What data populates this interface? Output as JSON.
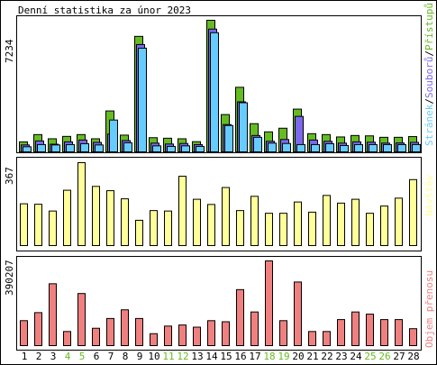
{
  "title": "Denní statistika za únor 2023",
  "colors": {
    "hits": "#66bb22",
    "files": "#7b68ee",
    "pages": "#66ccff",
    "visits": "#ffff99",
    "kbytes": "#f08080",
    "weekend": "#66bb22",
    "text": "#000000",
    "frame": "#000000"
  },
  "legends": {
    "top": [
      {
        "text": "Stránek",
        "color": "#66ccff"
      },
      {
        "text": "/",
        "color": "#000000"
      },
      {
        "text": "Souborů",
        "color": "#7b68ee"
      },
      {
        "text": "/",
        "color": "#000000"
      },
      {
        "text": "Přístupů",
        "color": "#66bb22"
      }
    ],
    "middle": "Návštěv",
    "bottom": "Objem přenosu"
  },
  "chart_data": [
    {
      "type": "bar",
      "panel": "top",
      "ymax_label": "7234",
      "ylim": [
        0,
        7234
      ],
      "categories": [
        "1",
        "2",
        "3",
        "4",
        "5",
        "6",
        "7",
        "8",
        "9",
        "10",
        "11",
        "12",
        "13",
        "14",
        "15",
        "16",
        "17",
        "18",
        "19",
        "20",
        "21",
        "22",
        "23",
        "24",
        "25",
        "26",
        "27",
        "28"
      ],
      "weekend_days": [
        "4",
        "5",
        "11",
        "12",
        "18",
        "19",
        "25",
        "26"
      ],
      "series": [
        {
          "name": "Přístupů",
          "values": [
            550,
            950,
            720,
            850,
            950,
            720,
            2250,
            920,
            6350,
            780,
            750,
            720,
            560,
            7234,
            2050,
            3550,
            1550,
            1100,
            1300,
            2350,
            1000,
            950,
            820,
            900,
            880,
            800,
            800,
            840
          ]
        },
        {
          "name": "Souborů",
          "values": [
            380,
            600,
            420,
            550,
            650,
            520,
            980,
            620,
            5900,
            480,
            430,
            460,
            400,
            6750,
            1500,
            2750,
            900,
            580,
            680,
            1950,
            650,
            580,
            480,
            550,
            530,
            480,
            490,
            520
          ]
        },
        {
          "name": "Stránek",
          "values": [
            280,
            400,
            380,
            400,
            450,
            380,
            1750,
            500,
            5700,
            330,
            300,
            330,
            300,
            6550,
            1450,
            2700,
            800,
            480,
            460,
            400,
            400,
            450,
            350,
            400,
            400,
            400,
            400,
            400
          ]
        }
      ]
    },
    {
      "type": "bar",
      "panel": "middle",
      "ymax_label": "367",
      "ylim": [
        0,
        367
      ],
      "categories": [
        "1",
        "2",
        "3",
        "4",
        "5",
        "6",
        "7",
        "8",
        "9",
        "10",
        "11",
        "12",
        "13",
        "14",
        "15",
        "16",
        "17",
        "18",
        "19",
        "20",
        "21",
        "22",
        "23",
        "24",
        "25",
        "26",
        "27",
        "28"
      ],
      "series": [
        {
          "name": "Návštěv",
          "values": [
            185,
            183,
            153,
            245,
            367,
            262,
            243,
            207,
            112,
            155,
            153,
            307,
            205,
            182,
            257,
            155,
            218,
            143,
            143,
            193,
            148,
            222,
            188,
            205,
            143,
            175,
            210,
            292
          ]
        }
      ]
    },
    {
      "type": "bar",
      "panel": "bottom",
      "ymax_label": "390207",
      "ylim": [
        0,
        390207
      ],
      "categories": [
        "1",
        "2",
        "3",
        "4",
        "5",
        "6",
        "7",
        "8",
        "9",
        "10",
        "11",
        "12",
        "13",
        "14",
        "15",
        "16",
        "17",
        "18",
        "19",
        "20",
        "21",
        "22",
        "23",
        "24",
        "25",
        "26",
        "27",
        "28"
      ],
      "series": [
        {
          "name": "Objem přenosu",
          "values": [
            115000,
            152000,
            285000,
            65000,
            240000,
            80000,
            125000,
            165000,
            125000,
            55000,
            90000,
            95000,
            85000,
            115000,
            110000,
            258000,
            155000,
            390207,
            115000,
            293000,
            65000,
            65000,
            120000,
            155000,
            145000,
            120000,
            120000,
            78000
          ]
        }
      ]
    }
  ]
}
